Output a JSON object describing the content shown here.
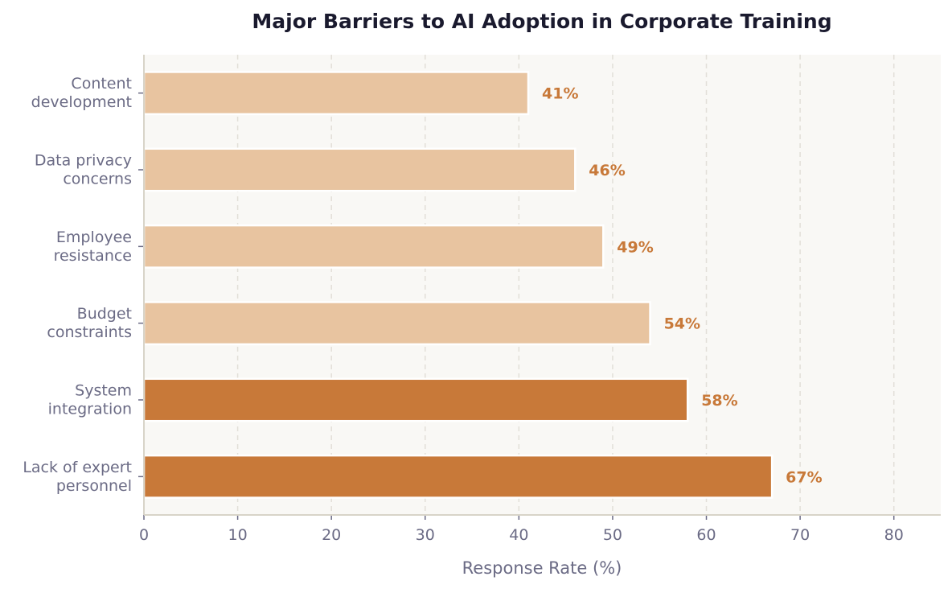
{
  "chart_data": {
    "type": "bar",
    "orientation": "horizontal",
    "title": "Major Barriers to AI Adoption in Corporate Training",
    "xlabel": "Response Rate (%)",
    "ylabel": "",
    "xlim": [
      0,
      85
    ],
    "xticks": [
      0,
      10,
      20,
      30,
      40,
      50,
      60,
      70,
      80
    ],
    "grid": "x, dashed",
    "categories": [
      "Content\ndevelopment",
      "Data privacy\nconcerns",
      "Employee\nresistance",
      "Budget\nconstraints",
      "System\nintegration",
      "Lack of expert\npersonnel"
    ],
    "values": [
      41,
      46,
      49,
      54,
      58,
      67
    ],
    "data_labels": [
      "41%",
      "46%",
      "49%",
      "54%",
      "58%",
      "67%"
    ],
    "bar_colors": [
      "#E8C4A0",
      "#E8C4A0",
      "#E8C4A0",
      "#E8C4A0",
      "#C87939",
      "#C87939"
    ],
    "colors": {
      "label": "#C87939",
      "axis_text": "#6B6B85",
      "title": "#1A1A2E",
      "plot_background": "#F9F8F5",
      "grid": "#E2DFD8",
      "spine": "#D8D4C8"
    }
  }
}
